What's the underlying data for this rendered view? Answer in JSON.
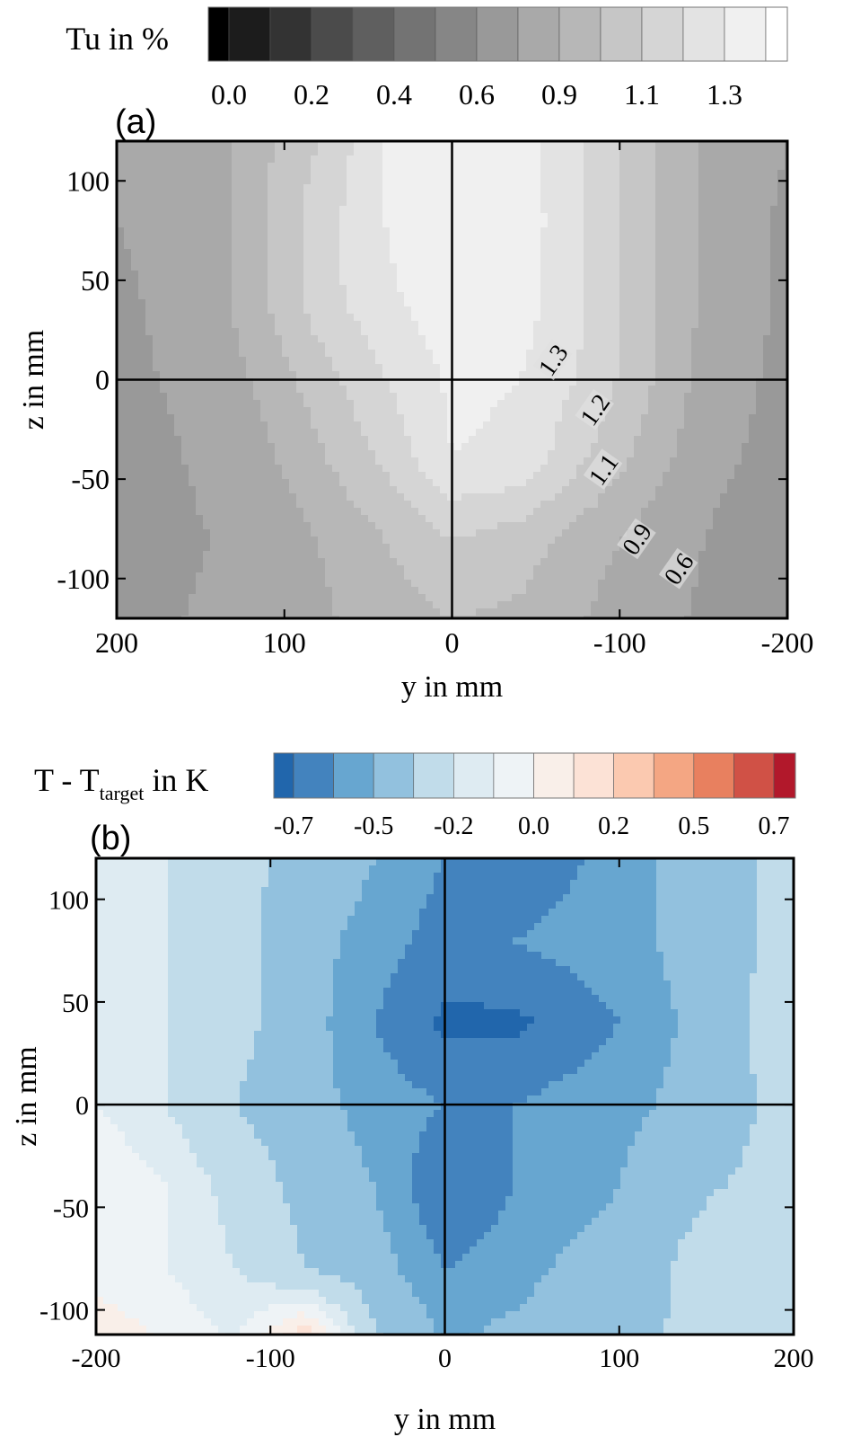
{
  "chart_data": [
    {
      "type": "heatmap",
      "panel_label": "(a)",
      "colorbar_title": "Tu in %",
      "colorbar_ticks": [
        "0.0",
        "0.2",
        "0.4",
        "0.6",
        "0.9",
        "1.1",
        "1.3"
      ],
      "levels": [
        0.0,
        0.1,
        0.2,
        0.3,
        0.4,
        0.5,
        0.6,
        0.75,
        0.9,
        1.0,
        1.1,
        1.2,
        1.3
      ],
      "colors": [
        "#000000",
        "#1c1c1c",
        "#333333",
        "#4b4b4b",
        "#5f5f5f",
        "#737373",
        "#868686",
        "#999999",
        "#a9a9a9",
        "#b7b7b7",
        "#c6c6c6",
        "#d5d5d5",
        "#e3e3e3",
        "#f0f0f0",
        "#ffffff"
      ],
      "xlabel": "y in mm",
      "ylabel": "z in mm",
      "xlim": [
        200,
        -200
      ],
      "ylim": [
        -120,
        120
      ],
      "xticks": [
        200,
        100,
        0,
        -100,
        -200
      ],
      "yticks": [
        100,
        50,
        0,
        -50,
        -100
      ],
      "xtick_labels": [
        "200",
        "100",
        "0",
        "-100",
        "-200"
      ],
      "ytick_labels": [
        "100",
        "50",
        "0",
        "-50",
        "-100"
      ],
      "x": [
        200,
        160,
        120,
        80,
        40,
        0,
        -40,
        -80,
        -120,
        -160,
        -200
      ],
      "z": [
        120,
        80,
        40,
        0,
        -40,
        -80,
        -120
      ],
      "values": [
        [
          0.75,
          0.8,
          0.95,
          1.1,
          1.3,
          1.38,
          1.35,
          1.2,
          1.0,
          0.85,
          0.75
        ],
        [
          0.75,
          0.8,
          0.95,
          1.15,
          1.3,
          1.38,
          1.36,
          1.2,
          1.0,
          0.85,
          0.72
        ],
        [
          0.72,
          0.8,
          0.95,
          1.15,
          1.28,
          1.36,
          1.35,
          1.2,
          1.0,
          0.85,
          0.72
        ],
        [
          0.7,
          0.78,
          0.9,
          1.05,
          1.2,
          1.32,
          1.3,
          1.18,
          1.0,
          0.82,
          0.7
        ],
        [
          0.65,
          0.75,
          0.85,
          0.98,
          1.12,
          1.3,
          1.28,
          1.1,
          0.95,
          0.78,
          0.68
        ],
        [
          0.62,
          0.72,
          0.8,
          0.9,
          1.0,
          1.1,
          1.05,
          0.95,
          0.85,
          0.72,
          0.62
        ],
        [
          0.65,
          0.75,
          0.82,
          0.88,
          0.95,
          1.0,
          0.98,
          0.9,
          0.8,
          0.7,
          0.6
        ]
      ],
      "annotations": [
        {
          "text": "1.3",
          "y": -60,
          "z": 10
        },
        {
          "text": "1.2",
          "y": -85,
          "z": -15
        },
        {
          "text": "1.1",
          "y": -90,
          "z": -45
        },
        {
          "text": "0.9",
          "y": -110,
          "z": -80
        },
        {
          "text": "0.6",
          "y": -135,
          "z": -95
        }
      ]
    },
    {
      "type": "heatmap",
      "panel_label": "(b)",
      "colorbar_title": "T - T",
      "colorbar_title_sub": "target",
      "colorbar_title_end": " in K",
      "colorbar_ticks": [
        "-0.7",
        "-0.5",
        "-0.2",
        "0.0",
        "0.2",
        "0.5",
        "0.7"
      ],
      "levels": [
        -0.7,
        -0.6,
        -0.5,
        -0.35,
        -0.2,
        -0.1,
        0.0,
        0.1,
        0.2,
        0.35,
        0.5,
        0.6,
        0.7
      ],
      "colors": [
        "#2166ac",
        "#4383be",
        "#67a6d0",
        "#92c1de",
        "#c1dcea",
        "#deebf2",
        "#eef3f6",
        "#f9efe9",
        "#fce2d6",
        "#fbc9b0",
        "#f4a683",
        "#e8805f",
        "#d05146",
        "#b2182b"
      ],
      "xlabel": "y in mm",
      "ylabel": "z in mm",
      "xlim": [
        -200,
        200
      ],
      "ylim": [
        -112,
        120
      ],
      "xticks": [
        -200,
        -100,
        0,
        100,
        200
      ],
      "yticks": [
        100,
        50,
        0,
        -50,
        -100
      ],
      "xtick_labels": [
        "-200",
        "-100",
        "0",
        "100",
        "200"
      ],
      "ytick_labels": [
        "100",
        "50",
        "0",
        "-50",
        "-100"
      ],
      "x": [
        -200,
        -160,
        -120,
        -80,
        -40,
        0,
        40,
        80,
        120,
        160,
        200
      ],
      "z": [
        120,
        80,
        40,
        0,
        -40,
        -80,
        -120
      ],
      "values": [
        [
          -0.15,
          -0.2,
          -0.3,
          -0.4,
          -0.5,
          -0.6,
          -0.7,
          -0.6,
          -0.5,
          -0.4,
          -0.3
        ],
        [
          -0.1,
          -0.2,
          -0.3,
          -0.45,
          -0.55,
          -0.65,
          -0.6,
          -0.55,
          -0.5,
          -0.4,
          -0.3
        ],
        [
          -0.1,
          -0.2,
          -0.3,
          -0.45,
          -0.6,
          -0.72,
          -0.72,
          -0.65,
          -0.55,
          -0.4,
          -0.25
        ],
        [
          -0.1,
          -0.2,
          -0.35,
          -0.45,
          -0.55,
          -0.6,
          -0.6,
          -0.55,
          -0.5,
          -0.4,
          -0.3
        ],
        [
          0.0,
          -0.1,
          -0.25,
          -0.4,
          -0.5,
          -0.7,
          -0.6,
          -0.55,
          -0.45,
          -0.35,
          -0.3
        ],
        [
          -0.05,
          -0.1,
          -0.2,
          -0.35,
          -0.45,
          -0.6,
          -0.55,
          -0.45,
          -0.4,
          -0.2,
          -0.3
        ],
        [
          0.1,
          0.0,
          -0.1,
          0.3,
          -0.3,
          -0.5,
          -0.45,
          -0.4,
          -0.35,
          -0.3,
          -0.3
        ]
      ]
    }
  ]
}
